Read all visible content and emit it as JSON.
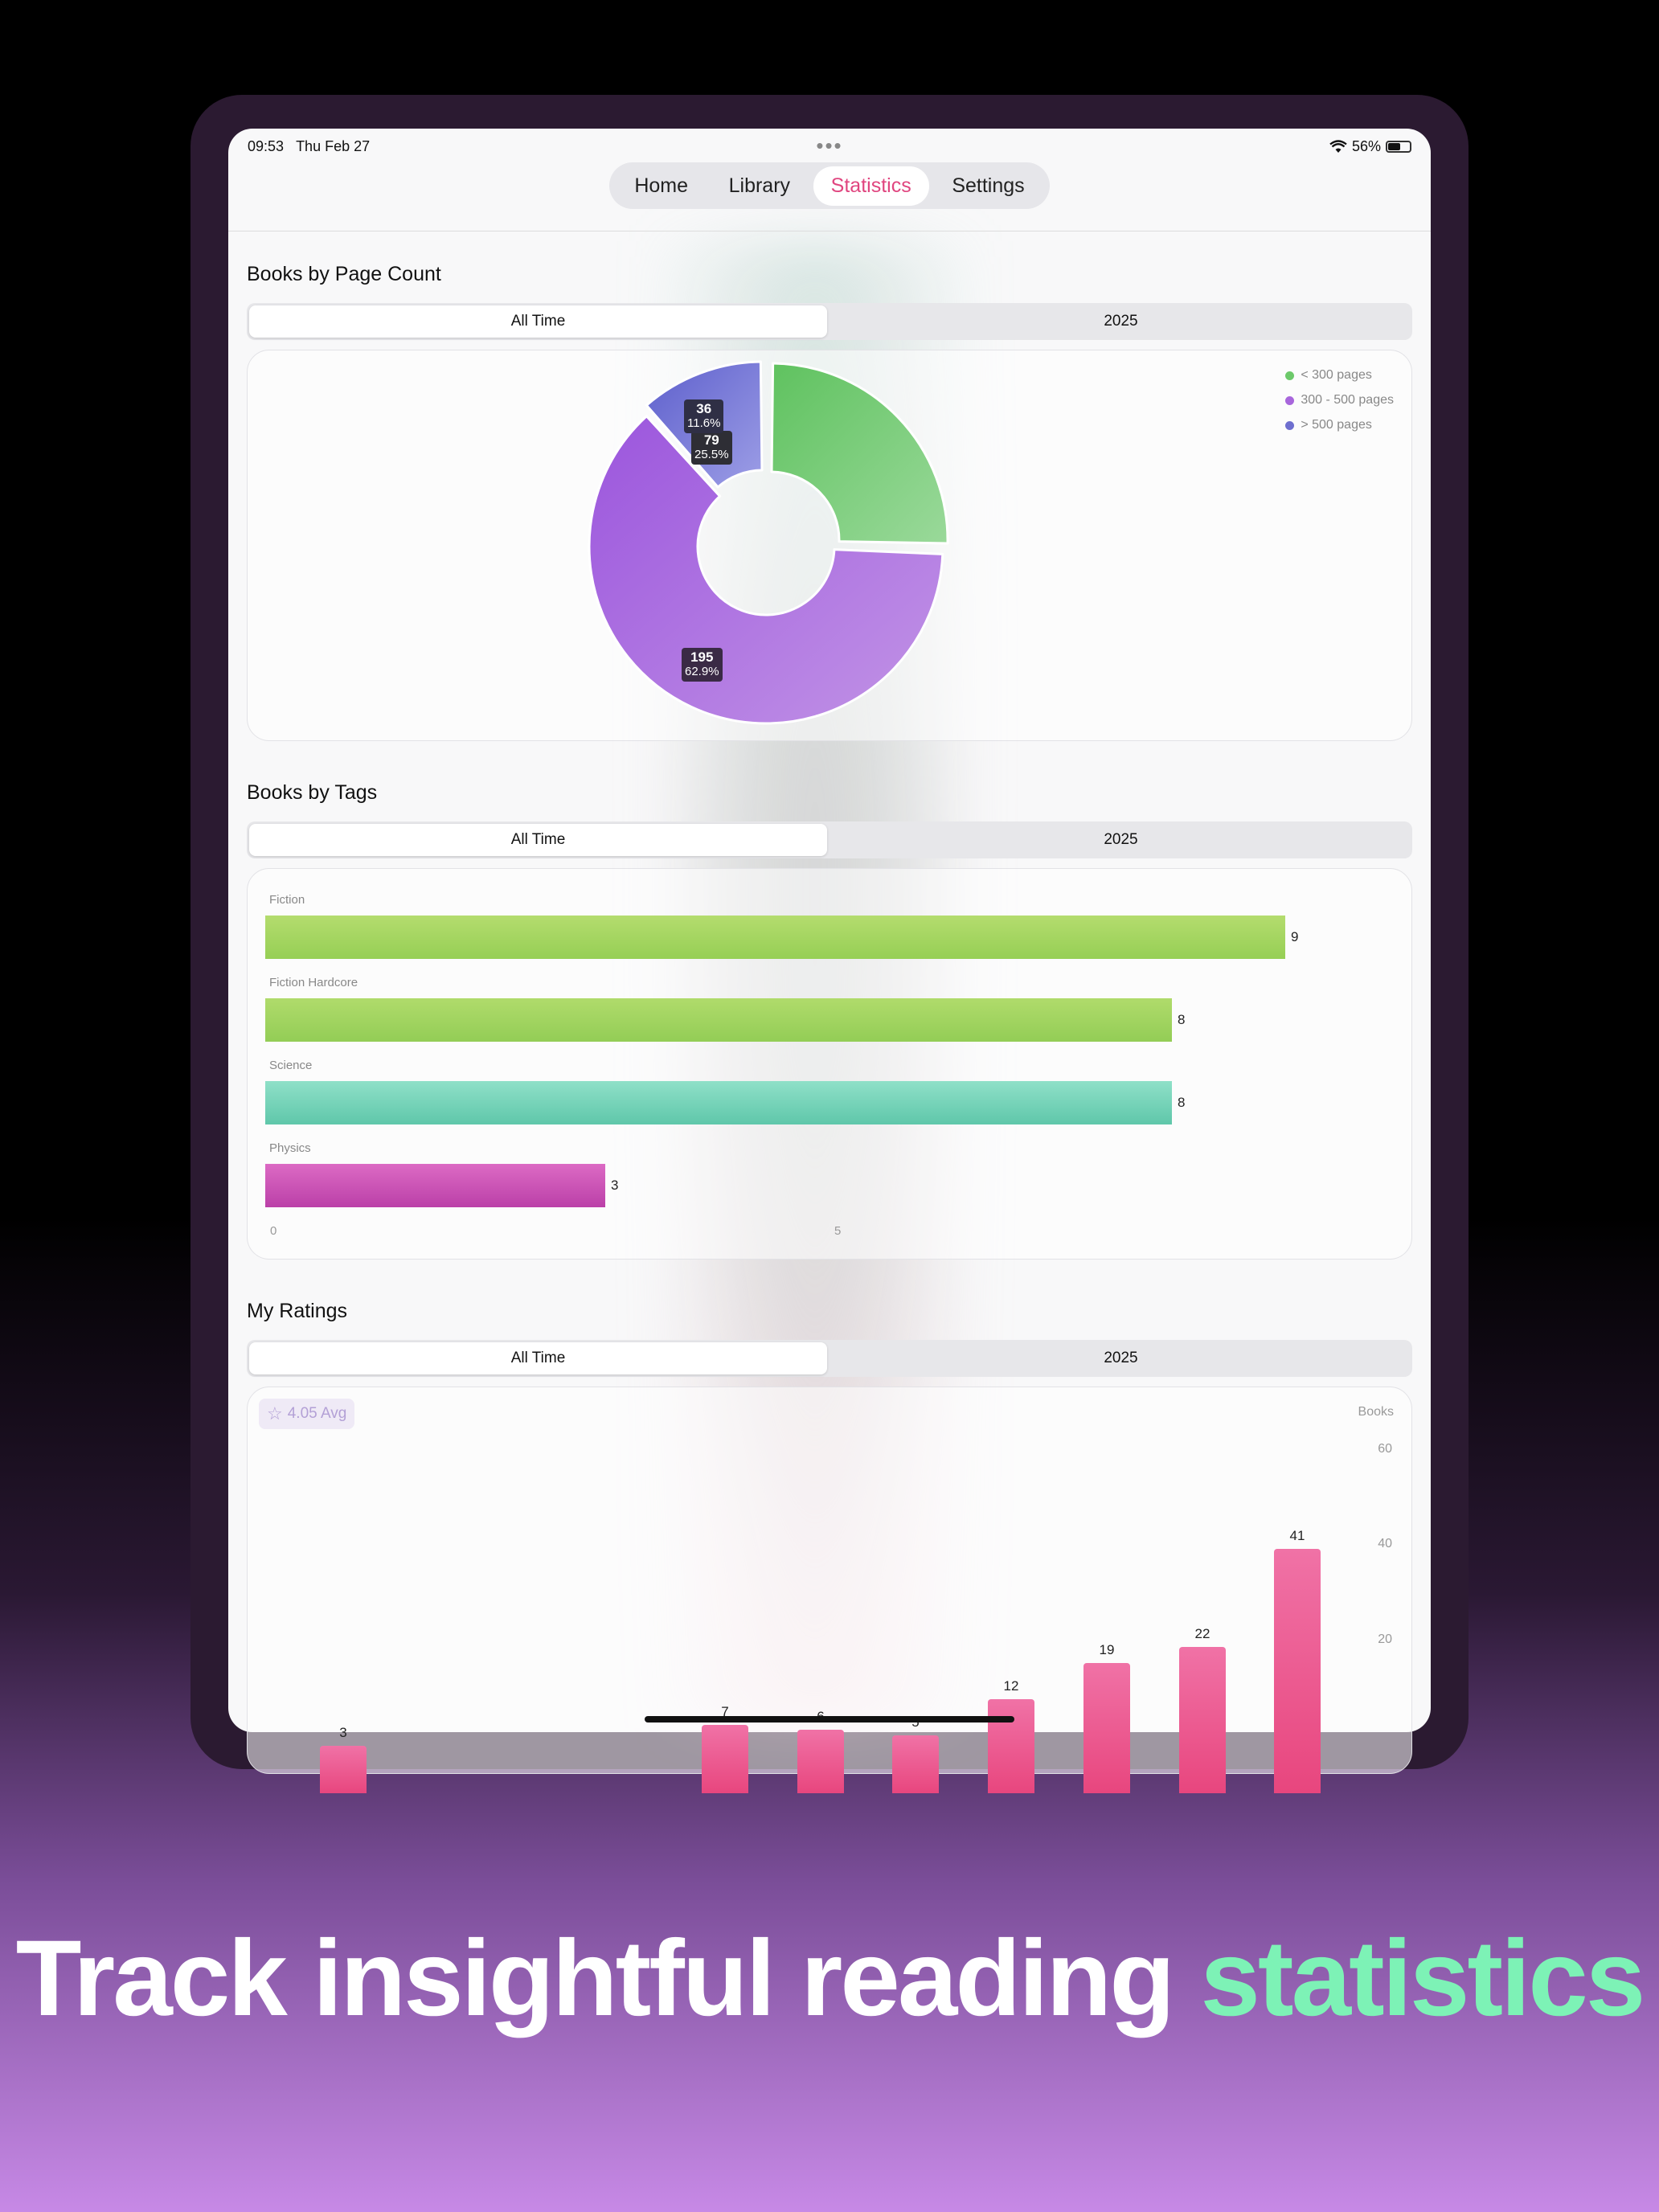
{
  "status_bar": {
    "time": "09:53",
    "date": "Thu Feb 27",
    "battery": "56%",
    "battery_level": 0.56
  },
  "nav": {
    "tabs": [
      "Home",
      "Library",
      "Statistics",
      "Settings"
    ],
    "active": "Statistics"
  },
  "page_count": {
    "title": "Books by Page Count",
    "segments": [
      "All Time",
      "2025"
    ],
    "legend": [
      "< 300 pages",
      "300 - 500 pages",
      "> 500 pages"
    ],
    "slices": [
      {
        "label": "< 300 pages",
        "count": "79",
        "percent": "25.5%",
        "color": "#6cc96a"
      },
      {
        "label": "300 - 500 pages",
        "count": "195",
        "percent": "62.9%",
        "color": "#a866dc"
      },
      {
        "label": "> 500 pages",
        "count": "36",
        "percent": "11.6%",
        "color": "#6e6fcf"
      }
    ]
  },
  "tags": {
    "title": "Books by Tags",
    "segments": [
      "All Time",
      "2025"
    ],
    "bars": [
      {
        "label": "Fiction",
        "value": "9"
      },
      {
        "label": "Fiction Hardcore",
        "value": "8"
      },
      {
        "label": "Science",
        "value": "8"
      },
      {
        "label": "Physics",
        "value": "3"
      }
    ],
    "axis": [
      "0",
      "5"
    ]
  },
  "ratings": {
    "title": "My Ratings",
    "segments": [
      "All Time",
      "2025"
    ],
    "avg": "4.05 Avg",
    "axis_title": "Books",
    "y_ticks": [
      "60",
      "40",
      "20"
    ],
    "bar_values": [
      "3",
      "7",
      "6",
      "5",
      "12",
      "19",
      "22",
      "41"
    ]
  },
  "chart_data": [
    {
      "type": "pie",
      "categories": [
        "< 300 pages",
        "300 - 500 pages",
        "> 500 pages"
      ],
      "values": [
        79,
        195,
        36
      ],
      "percentages": [
        25.5,
        62.9,
        11.6
      ],
      "title": "Books by Page Count",
      "legend": "top-right"
    },
    {
      "type": "bar",
      "orientation": "horizontal",
      "categories": [
        "Fiction",
        "Fiction Hardcore",
        "Science",
        "Physics"
      ],
      "values": [
        9,
        8,
        8,
        3
      ],
      "title": "Books by Tags"
    },
    {
      "type": "bar",
      "title": "My Ratings",
      "ylabel": "Books",
      "ylim": [
        0,
        60
      ],
      "values": [
        3,
        7,
        6,
        5,
        12,
        19,
        22,
        41
      ]
    }
  ],
  "headline": {
    "main": "Track insightful reading ",
    "accent": "statistics"
  }
}
